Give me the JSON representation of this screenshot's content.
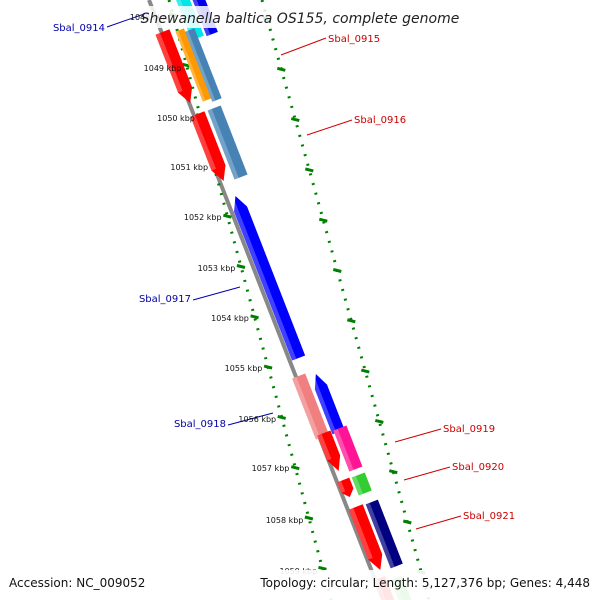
{
  "title": "Shewanella baltica OS155, complete genome",
  "footer": {
    "accession": "Accession: NC_009052",
    "topology": "Topology: circular; Length: 5,127,376 bp; Genes: 4,448"
  },
  "colors": {
    "tick": "#008000",
    "backbone": "#888888",
    "reverse_label": "#0000aa",
    "forward_label": "#cc0000"
  },
  "kbp_ticks": [
    "1048 kbp",
    "1049 kbp",
    "1050 kbp",
    "1051 kbp",
    "1052 kbp",
    "1053 kbp",
    "1054 kbp",
    "1055 kbp",
    "1056 kbp",
    "1057 kbp",
    "1058 kbp",
    "1059 kbp"
  ],
  "genes": [
    {
      "name": "Sbal_0914",
      "strand": "reverse"
    },
    {
      "name": "Sbal_0915",
      "strand": "forward"
    },
    {
      "name": "Sbal_0916",
      "strand": "forward"
    },
    {
      "name": "Sbal_0917",
      "strand": "reverse"
    },
    {
      "name": "Sbal_0918",
      "strand": "reverse"
    },
    {
      "name": "Sbal_0919",
      "strand": "forward"
    },
    {
      "name": "Sbal_0920",
      "strand": "forward"
    },
    {
      "name": "Sbal_0921",
      "strand": "forward"
    }
  ]
}
